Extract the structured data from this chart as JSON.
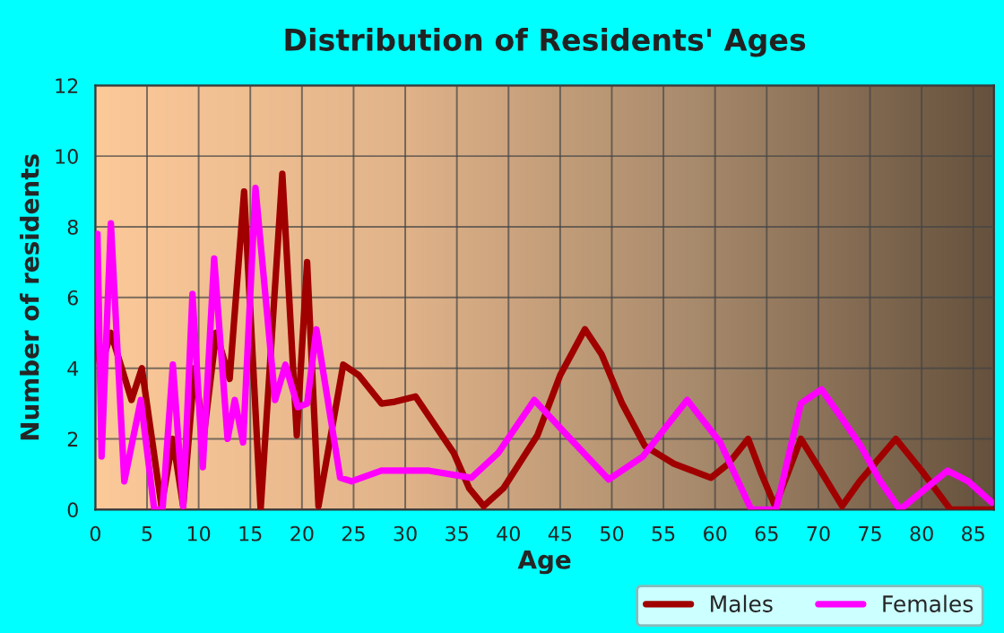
{
  "chart_data": {
    "type": "line",
    "title": "Distribution of Residents' Ages",
    "xlabel": "Age",
    "ylabel": "Number of residents",
    "xlim": [
      0,
      87
    ],
    "xticks": [
      0,
      5,
      10,
      15,
      20,
      25,
      30,
      35,
      40,
      45,
      50,
      55,
      60,
      65,
      70,
      75,
      80,
      85
    ],
    "ylim": [
      0,
      12
    ],
    "yticks": [
      0,
      2,
      4,
      6,
      8,
      10,
      12
    ],
    "grid": true,
    "legend": "bottom",
    "marker": "none",
    "line_style": "solid",
    "series": [
      {
        "name": "Males",
        "color": "#a00000",
        "x": [
          0,
          0.5,
          1.5,
          3.5,
          4.5,
          6.4,
          7.5,
          8.5,
          9.6,
          10.5,
          11.7,
          13,
          14.4,
          16,
          18.1,
          19.5,
          20.5,
          21.6,
          24,
          25.5,
          27.7,
          29,
          31,
          34.7,
          36.2,
          37.6,
          39.5,
          42.8,
          45,
          47.4,
          49,
          51,
          53.2,
          56,
          59.6,
          61.3,
          63.2,
          64.5,
          65.8,
          67,
          68.3,
          70,
          72.3,
          74,
          77.5,
          80,
          82.8,
          87
        ],
        "values": [
          5,
          4,
          5,
          3.1,
          4,
          0.1,
          2,
          0.1,
          4,
          2.1,
          5,
          3.7,
          9,
          0,
          9.5,
          2.1,
          7,
          0.1,
          4.1,
          3.8,
          3,
          3.05,
          3.2,
          1.6,
          0.6,
          0.1,
          0.6,
          2.1,
          3.8,
          5.1,
          4.4,
          3,
          1.8,
          1.3,
          0.9,
          1.3,
          2,
          1,
          0.1,
          1,
          2,
          1.2,
          0.1,
          0.8,
          2,
          1.1,
          0,
          0
        ]
      },
      {
        "name": "Females",
        "color": "#ff00ff",
        "x": [
          0.2,
          0.6,
          1.5,
          2.8,
          4.4,
          5.7,
          6.5,
          7.5,
          8.5,
          9.4,
          10.4,
          11.5,
          12.8,
          13.5,
          14.3,
          15.5,
          17.4,
          18.4,
          19.6,
          20.5,
          21.4,
          23.7,
          24.8,
          27.7,
          32.3,
          36.4,
          39,
          42.5,
          46,
          49.7,
          53,
          57.3,
          60.5,
          63.5,
          65.9,
          68.3,
          70.3,
          72,
          74.1,
          76,
          77.9,
          80,
          82.5,
          84.5,
          86.8
        ],
        "values": [
          7.8,
          1.5,
          8.1,
          0.8,
          3.1,
          0,
          0,
          4.1,
          0.1,
          6.1,
          1.2,
          7.1,
          2,
          3.1,
          1.9,
          9.1,
          3.1,
          4.1,
          2.9,
          3,
          5.1,
          0.9,
          0.8,
          1.1,
          1.1,
          0.9,
          1.6,
          3.1,
          2,
          0.85,
          1.5,
          3.1,
          1.9,
          0,
          0,
          3,
          3.4,
          2.7,
          1.8,
          0.8,
          0,
          0.5,
          1.1,
          0.8,
          0.2
        ]
      }
    ]
  }
}
